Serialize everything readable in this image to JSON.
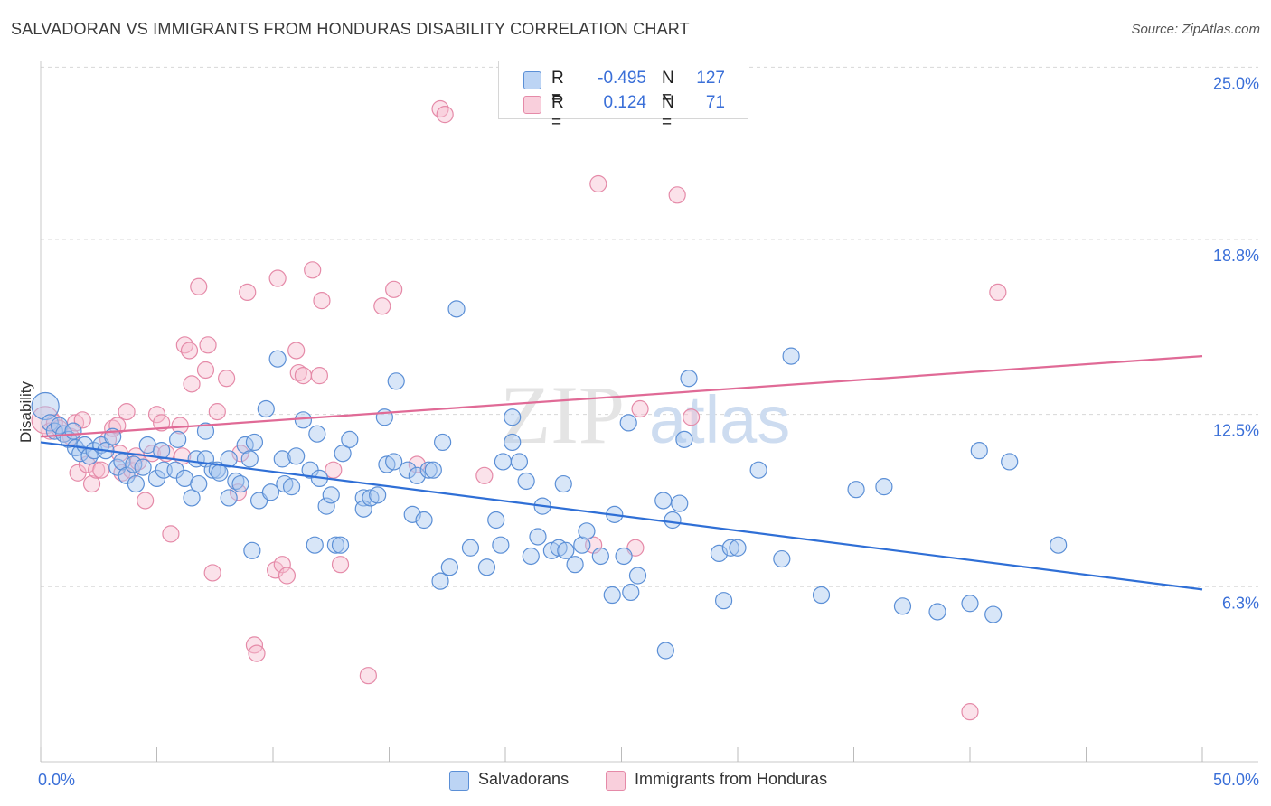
{
  "header": {
    "title": "SALVADORAN VS IMMIGRANTS FROM HONDURAS DISABILITY CORRELATION CHART",
    "source": "Source: ZipAtlas.com"
  },
  "legend": {
    "rows": [
      {
        "r_label": "R =",
        "r_value": "-0.495",
        "n_label": "N =",
        "n_value": "127"
      },
      {
        "r_label": "R =",
        "r_value": "0.124",
        "n_label": "N =",
        "n_value": "71"
      }
    ]
  },
  "bottom_legend": {
    "salvadorans": "Salvadorans",
    "honduras": "Immigrants from Honduras"
  },
  "watermark": {
    "zip": "ZIP",
    "atlas": "atlas"
  },
  "colors": {
    "blue_fill": "#a9c8f0",
    "blue_stroke": "#5b8fd6",
    "blue_line": "#2f6fd6",
    "pink_fill": "#f6bfd0",
    "pink_stroke": "#e58aa8",
    "pink_line": "#e06a96",
    "tick_label": "#3a6fd8",
    "grid": "#d8d8d8"
  },
  "chart_data": {
    "type": "scatter",
    "title": "SALVADORAN VS IMMIGRANTS FROM HONDURAS DISABILITY CORRELATION CHART",
    "xlabel": "",
    "ylabel": "Disability",
    "xlim": [
      0,
      50
    ],
    "ylim": [
      0,
      25.5
    ],
    "x_tick_labels": [
      "0.0%",
      "50.0%"
    ],
    "y_ticks": [
      6.3,
      12.5,
      18.8,
      25.0
    ],
    "y_tick_labels": [
      "6.3%",
      "12.5%",
      "18.8%",
      "25.0%"
    ],
    "grid": true,
    "legend_position": "top-center",
    "series": [
      {
        "name": "Salvadorans",
        "color": "#5b8fd6",
        "trend": {
          "x": [
            0,
            50
          ],
          "y": [
            11.5,
            6.2
          ]
        },
        "points": [
          [
            0.2,
            12.8
          ],
          [
            0.4,
            12.2
          ],
          [
            0.6,
            11.9
          ],
          [
            0.8,
            12.1
          ],
          [
            1.0,
            11.8
          ],
          [
            1.2,
            11.6
          ],
          [
            1.4,
            11.9
          ],
          [
            1.5,
            11.3
          ],
          [
            1.7,
            11.1
          ],
          [
            1.9,
            11.4
          ],
          [
            2.1,
            11.0
          ],
          [
            2.3,
            11.2
          ],
          [
            2.6,
            11.4
          ],
          [
            2.8,
            11.2
          ],
          [
            3.1,
            11.7
          ],
          [
            3.3,
            10.6
          ],
          [
            3.5,
            10.8
          ],
          [
            3.7,
            10.3
          ],
          [
            4.0,
            10.7
          ],
          [
            4.1,
            10.0
          ],
          [
            4.4,
            10.6
          ],
          [
            4.6,
            11.4
          ],
          [
            5.0,
            10.2
          ],
          [
            5.2,
            11.2
          ],
          [
            5.3,
            10.5
          ],
          [
            5.8,
            10.5
          ],
          [
            5.9,
            11.6
          ],
          [
            6.2,
            10.2
          ],
          [
            6.5,
            9.5
          ],
          [
            6.7,
            10.9
          ],
          [
            6.8,
            10.0
          ],
          [
            7.1,
            10.9
          ],
          [
            7.1,
            11.9
          ],
          [
            7.4,
            10.5
          ],
          [
            7.6,
            10.5
          ],
          [
            7.7,
            10.4
          ],
          [
            8.1,
            10.9
          ],
          [
            8.1,
            9.5
          ],
          [
            8.4,
            10.1
          ],
          [
            8.6,
            10.0
          ],
          [
            8.8,
            11.4
          ],
          [
            9.0,
            10.9
          ],
          [
            9.1,
            7.6
          ],
          [
            9.2,
            11.5
          ],
          [
            9.4,
            9.4
          ],
          [
            9.7,
            12.7
          ],
          [
            9.9,
            9.7
          ],
          [
            10.2,
            14.5
          ],
          [
            10.4,
            10.9
          ],
          [
            10.5,
            10.0
          ],
          [
            10.8,
            9.9
          ],
          [
            11.0,
            11.0
          ],
          [
            11.3,
            12.3
          ],
          [
            11.6,
            10.5
          ],
          [
            11.8,
            7.8
          ],
          [
            11.9,
            11.8
          ],
          [
            12.0,
            10.2
          ],
          [
            12.3,
            9.2
          ],
          [
            12.5,
            9.6
          ],
          [
            12.7,
            7.8
          ],
          [
            12.9,
            7.8
          ],
          [
            13.0,
            11.1
          ],
          [
            13.3,
            11.6
          ],
          [
            13.9,
            9.5
          ],
          [
            13.9,
            9.1
          ],
          [
            14.2,
            9.5
          ],
          [
            14.5,
            9.6
          ],
          [
            14.8,
            12.4
          ],
          [
            14.9,
            10.7
          ],
          [
            15.2,
            10.8
          ],
          [
            15.3,
            13.7
          ],
          [
            15.8,
            10.5
          ],
          [
            16.0,
            8.9
          ],
          [
            16.2,
            10.3
          ],
          [
            16.5,
            8.7
          ],
          [
            16.7,
            10.5
          ],
          [
            16.9,
            10.5
          ],
          [
            17.2,
            6.5
          ],
          [
            17.3,
            11.5
          ],
          [
            17.6,
            7.0
          ],
          [
            17.9,
            16.3
          ],
          [
            18.5,
            7.7
          ],
          [
            19.2,
            7.0
          ],
          [
            19.6,
            8.7
          ],
          [
            19.8,
            7.8
          ],
          [
            19.9,
            10.8
          ],
          [
            20.3,
            12.4
          ],
          [
            20.3,
            11.5
          ],
          [
            20.6,
            10.8
          ],
          [
            20.9,
            10.1
          ],
          [
            21.1,
            7.4
          ],
          [
            21.4,
            8.1
          ],
          [
            21.6,
            9.2
          ],
          [
            22.0,
            7.6
          ],
          [
            22.3,
            7.7
          ],
          [
            22.5,
            10.0
          ],
          [
            22.6,
            7.6
          ],
          [
            23.0,
            7.1
          ],
          [
            23.3,
            7.8
          ],
          [
            23.5,
            8.3
          ],
          [
            24.1,
            7.4
          ],
          [
            24.6,
            6.0
          ],
          [
            24.7,
            8.9
          ],
          [
            25.1,
            7.4
          ],
          [
            25.3,
            12.2
          ],
          [
            25.4,
            6.1
          ],
          [
            25.7,
            6.7
          ],
          [
            26.8,
            9.4
          ],
          [
            26.9,
            4.0
          ],
          [
            27.2,
            8.7
          ],
          [
            27.5,
            9.3
          ],
          [
            27.7,
            11.6
          ],
          [
            27.9,
            13.8
          ],
          [
            29.2,
            7.5
          ],
          [
            29.4,
            5.8
          ],
          [
            29.7,
            7.7
          ],
          [
            30.0,
            7.7
          ],
          [
            30.9,
            10.5
          ],
          [
            31.9,
            7.3
          ],
          [
            32.3,
            14.6
          ],
          [
            33.6,
            6.0
          ],
          [
            35.1,
            9.8
          ],
          [
            36.3,
            9.9
          ],
          [
            37.1,
            5.6
          ],
          [
            38.6,
            5.4
          ],
          [
            40.0,
            5.7
          ],
          [
            40.4,
            11.2
          ],
          [
            41.0,
            5.3
          ],
          [
            41.7,
            10.8
          ],
          [
            43.8,
            7.8
          ]
        ]
      },
      {
        "name": "Immigrants from Honduras",
        "color": "#e58aa8",
        "trend": {
          "x": [
            0,
            50
          ],
          "y": [
            11.7,
            14.6
          ]
        },
        "points": [
          [
            0.2,
            12.3
          ],
          [
            0.4,
            11.9
          ],
          [
            0.6,
            12.2
          ],
          [
            0.8,
            12.0
          ],
          [
            1.0,
            11.8
          ],
          [
            1.3,
            11.7
          ],
          [
            1.5,
            12.2
          ],
          [
            1.6,
            10.4
          ],
          [
            1.8,
            12.3
          ],
          [
            2.0,
            10.7
          ],
          [
            2.2,
            10.0
          ],
          [
            2.4,
            10.5
          ],
          [
            2.6,
            10.5
          ],
          [
            2.9,
            11.6
          ],
          [
            3.1,
            12.0
          ],
          [
            3.3,
            12.1
          ],
          [
            3.4,
            11.1
          ],
          [
            3.5,
            10.4
          ],
          [
            3.7,
            12.6
          ],
          [
            3.9,
            10.5
          ],
          [
            4.1,
            11.0
          ],
          [
            4.2,
            10.8
          ],
          [
            4.5,
            9.4
          ],
          [
            4.8,
            11.1
          ],
          [
            5.0,
            12.5
          ],
          [
            5.2,
            12.2
          ],
          [
            5.4,
            11.1
          ],
          [
            5.6,
            8.2
          ],
          [
            6.0,
            12.1
          ],
          [
            6.1,
            11.0
          ],
          [
            6.2,
            15.0
          ],
          [
            6.4,
            14.8
          ],
          [
            6.5,
            13.6
          ],
          [
            6.8,
            17.1
          ],
          [
            7.1,
            14.1
          ],
          [
            7.2,
            15.0
          ],
          [
            7.4,
            6.8
          ],
          [
            7.6,
            12.6
          ],
          [
            8.0,
            13.8
          ],
          [
            8.5,
            9.7
          ],
          [
            8.6,
            11.1
          ],
          [
            8.9,
            16.9
          ],
          [
            9.2,
            4.2
          ],
          [
            9.3,
            3.9
          ],
          [
            10.1,
            6.9
          ],
          [
            10.2,
            17.4
          ],
          [
            10.4,
            7.1
          ],
          [
            10.6,
            6.7
          ],
          [
            11.0,
            14.8
          ],
          [
            11.1,
            14.0
          ],
          [
            11.3,
            13.9
          ],
          [
            11.7,
            17.7
          ],
          [
            12.0,
            13.9
          ],
          [
            12.1,
            16.6
          ],
          [
            12.6,
            10.5
          ],
          [
            12.9,
            7.1
          ],
          [
            14.1,
            3.1
          ],
          [
            14.7,
            16.4
          ],
          [
            15.2,
            17.0
          ],
          [
            16.2,
            10.7
          ],
          [
            17.2,
            23.5
          ],
          [
            17.4,
            23.3
          ],
          [
            19.1,
            10.3
          ],
          [
            23.8,
            7.8
          ],
          [
            24.0,
            20.8
          ],
          [
            25.6,
            7.7
          ],
          [
            25.8,
            12.7
          ],
          [
            27.4,
            20.4
          ],
          [
            28.0,
            12.4
          ],
          [
            40.0,
            1.8
          ],
          [
            41.2,
            16.9
          ]
        ]
      }
    ]
  }
}
